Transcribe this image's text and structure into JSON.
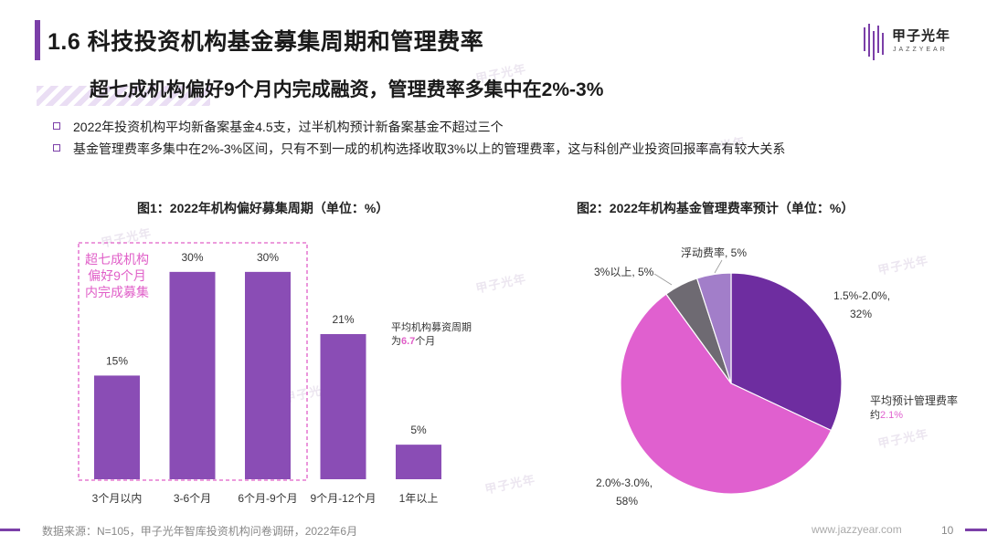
{
  "header": {
    "title": "1.6 科技投资机构基金募集周期和管理费率",
    "logo_name": "甲子光年",
    "logo_sub": "JAZZYEAR"
  },
  "headline": "超七成机构偏好9个月内完成融资，管理费率多集中在2%-3%",
  "bullets": [
    "2022年投资机构平均新备案基金4.5支，过半机构预计新备案基金不超过三个",
    "基金管理费率多集中在2%-3%区间，只有不到一成的机构选择收取3%以上的管理费率，这与科创产业投资回报率高有较大关系"
  ],
  "chart_data": [
    {
      "type": "bar",
      "title": "图1：2022年机构偏好募集周期（单位：%）",
      "categories": [
        "3个月以内",
        "3-6个月",
        "6个月-9个月",
        "9个月-12个月",
        "1年以上"
      ],
      "values": [
        15,
        30,
        30,
        21,
        5
      ],
      "value_labels": [
        "15%",
        "30%",
        "30%",
        "21%",
        "5%"
      ],
      "ylim": [
        0,
        35
      ],
      "grid": false,
      "bar_color": "#8a4db5",
      "highlight_box_label": [
        "超七成机构",
        "偏好9个月",
        "内完成募集"
      ],
      "highlight_color": "#e05fc8",
      "annotation": {
        "prefix": "平均机构募资周期",
        "prefix2": "为",
        "value": "6.7",
        "suffix": "个月"
      }
    },
    {
      "type": "pie",
      "title": "图2：2022年机构基金管理费率预计（单位：%）",
      "slices": [
        {
          "label": "1.5%-2.0%,",
          "value_label": "32%",
          "value": 32,
          "color": "#6e2da0"
        },
        {
          "label": "2.0%-3.0%,",
          "value_label": "58%",
          "value": 58,
          "color": "#e060cf"
        },
        {
          "label": "3%以上, 5%",
          "value_label": "",
          "value": 5,
          "color": "#6e6a72"
        },
        {
          "label": "浮动费率, 5%",
          "value_label": "",
          "value": 5,
          "color": "#a27ec9"
        }
      ],
      "annotation": {
        "line1": "平均预计管理费率",
        "prefix": "约",
        "value": "2.1%"
      },
      "accent_color": "#e060cf"
    }
  ],
  "footer": {
    "source": "数据来源：N=105，甲子光年智库投资机构问卷调研，2022年6月",
    "url": "www.jazzyear.com",
    "page": "10"
  },
  "colors": {
    "accent": "#7b3fa8",
    "pink": "#e060cf"
  },
  "watermark": "甲子光年"
}
